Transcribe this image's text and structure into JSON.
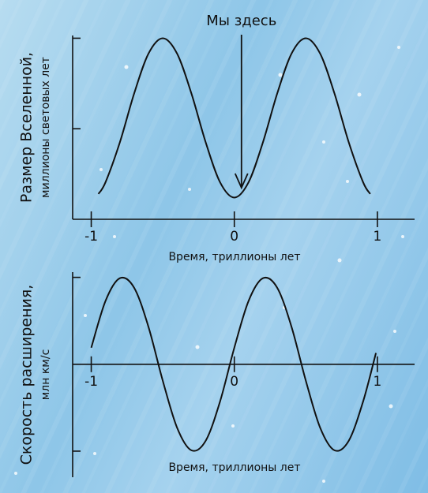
{
  "chart_data": [
    {
      "type": "line",
      "ylabel": "Размер Вселенной,",
      "ylabel_sub": "миллионы световых лет",
      "xlabel": "Время, триллионы лет",
      "annotation": "Мы здесь",
      "annotation_x": 0.05,
      "x": [
        -0.95,
        -0.9,
        -0.8,
        -0.7,
        -0.6,
        -0.5,
        -0.4,
        -0.3,
        -0.2,
        -0.1,
        0,
        0.1,
        0.2,
        0.3,
        0.4,
        0.5,
        0.6,
        0.7,
        0.8,
        0.9,
        0.95
      ],
      "values": [
        0.28,
        0.41,
        0.85,
        1.39,
        1.83,
        2.0,
        1.83,
        1.39,
        0.85,
        0.41,
        0.24,
        0.41,
        0.85,
        1.39,
        1.83,
        2.0,
        1.83,
        1.39,
        0.85,
        0.41,
        0.28
      ],
      "color": "#111111",
      "xlim": [
        -1.13,
        1.26
      ],
      "xticks": [
        -1,
        0,
        1
      ],
      "ylim": [
        0,
        2.03
      ],
      "yticks": [
        1,
        2
      ]
    },
    {
      "type": "line",
      "ylabel": "Скорость расширения,",
      "ylabel_sub": "млн км/с",
      "xlabel": "Время, триллионы лет",
      "x": [
        -1.0,
        -0.9,
        -0.8,
        -0.7,
        -0.6,
        -0.5,
        -0.4,
        -0.3,
        -0.2,
        -0.1,
        0,
        0.1,
        0.2,
        0.3,
        0.4,
        0.5,
        0.6,
        0.7,
        0.8,
        0.9,
        0.99
      ],
      "values": [
        0.19,
        0.73,
        0.99,
        0.88,
        0.43,
        -0.19,
        -0.73,
        -0.99,
        -0.88,
        -0.43,
        0.19,
        0.73,
        0.99,
        0.88,
        0.43,
        -0.19,
        -0.73,
        -0.99,
        -0.88,
        -0.43,
        0.13
      ],
      "color": "#111111",
      "xlim": [
        -1.13,
        1.26
      ],
      "xticks": [
        -1,
        0,
        1
      ],
      "ylim": [
        -1.3,
        1.06
      ],
      "yticks": [
        -1,
        1
      ]
    }
  ]
}
